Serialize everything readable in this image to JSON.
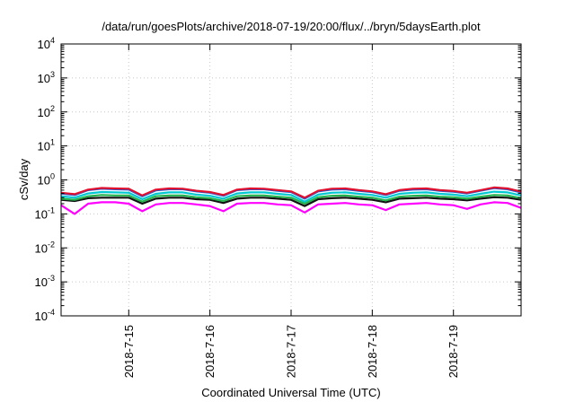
{
  "chart_data": {
    "type": "line",
    "title": "/data/run/goesPlots/archive/2018-07-19/20:00/flux/../bryn/5daysEarth.plot",
    "xlabel": "Coordinated Universal Time (UTC)",
    "ylabel": "cSv/day",
    "y_scale": "log",
    "ylim": [
      0.0001,
      10000
    ],
    "y_ticks": [
      {
        "base": "10",
        "exp": "-4",
        "value": 0.0001
      },
      {
        "base": "10",
        "exp": "-3",
        "value": 0.001
      },
      {
        "base": "10",
        "exp": "-2",
        "value": 0.01
      },
      {
        "base": "10",
        "exp": "-1",
        "value": 0.1
      },
      {
        "base": "10",
        "exp": "0",
        "value": 1
      },
      {
        "base": "10",
        "exp": "1",
        "value": 10
      },
      {
        "base": "10",
        "exp": "2",
        "value": 100
      },
      {
        "base": "10",
        "exp": "3",
        "value": 1000
      },
      {
        "base": "10",
        "exp": "4",
        "value": 10000
      }
    ],
    "xlim": [
      "2018-07-14T04:00",
      "2018-07-19T20:00"
    ],
    "x_ticks": [
      {
        "label": "2018-7-15",
        "value": "2018-07-15T00:00"
      },
      {
        "label": "2018-7-16",
        "value": "2018-07-16T00:00"
      },
      {
        "label": "2018-7-17",
        "value": "2018-07-17T00:00"
      },
      {
        "label": "2018-7-18",
        "value": "2018-07-18T00:00"
      },
      {
        "label": "2018-7-19",
        "value": "2018-07-19T00:00"
      }
    ],
    "grid": true,
    "x": [
      "2018-07-14T04:00",
      "2018-07-14T08:00",
      "2018-07-14T12:00",
      "2018-07-14T16:00",
      "2018-07-14T20:00",
      "2018-07-15T00:00",
      "2018-07-15T04:00",
      "2018-07-15T08:00",
      "2018-07-15T12:00",
      "2018-07-15T16:00",
      "2018-07-15T20:00",
      "2018-07-16T00:00",
      "2018-07-16T04:00",
      "2018-07-16T08:00",
      "2018-07-16T12:00",
      "2018-07-16T16:00",
      "2018-07-16T20:00",
      "2018-07-17T00:00",
      "2018-07-17T04:00",
      "2018-07-17T08:00",
      "2018-07-17T12:00",
      "2018-07-17T16:00",
      "2018-07-17T20:00",
      "2018-07-18T00:00",
      "2018-07-18T04:00",
      "2018-07-18T08:00",
      "2018-07-18T12:00",
      "2018-07-18T16:00",
      "2018-07-18T20:00",
      "2018-07-19T00:00",
      "2018-07-19T04:00",
      "2018-07-19T08:00",
      "2018-07-19T12:00",
      "2018-07-19T16:00",
      "2018-07-19T20:00"
    ],
    "series": [
      {
        "color": "#e0102f",
        "values": [
          0.42,
          0.38,
          0.52,
          0.58,
          0.56,
          0.55,
          0.35,
          0.52,
          0.56,
          0.55,
          0.48,
          0.44,
          0.36,
          0.52,
          0.56,
          0.55,
          0.5,
          0.46,
          0.3,
          0.48,
          0.55,
          0.56,
          0.5,
          0.46,
          0.38,
          0.5,
          0.55,
          0.56,
          0.5,
          0.47,
          0.42,
          0.5,
          0.6,
          0.56,
          0.45
        ]
      },
      {
        "color": "#1e5fd6",
        "values": [
          0.4,
          0.36,
          0.5,
          0.55,
          0.53,
          0.52,
          0.33,
          0.49,
          0.53,
          0.53,
          0.46,
          0.42,
          0.34,
          0.5,
          0.53,
          0.53,
          0.48,
          0.44,
          0.28,
          0.46,
          0.52,
          0.53,
          0.48,
          0.44,
          0.36,
          0.48,
          0.52,
          0.53,
          0.48,
          0.45,
          0.4,
          0.48,
          0.57,
          0.53,
          0.43
        ]
      },
      {
        "color": "#00c8d2",
        "values": [
          0.33,
          0.3,
          0.4,
          0.44,
          0.43,
          0.42,
          0.27,
          0.39,
          0.43,
          0.43,
          0.37,
          0.34,
          0.28,
          0.4,
          0.43,
          0.43,
          0.39,
          0.36,
          0.23,
          0.37,
          0.42,
          0.43,
          0.39,
          0.36,
          0.3,
          0.39,
          0.42,
          0.43,
          0.39,
          0.37,
          0.33,
          0.39,
          0.45,
          0.43,
          0.35
        ]
      },
      {
        "color": "#22b24c",
        "values": [
          0.28,
          0.26,
          0.33,
          0.36,
          0.35,
          0.35,
          0.23,
          0.33,
          0.35,
          0.35,
          0.31,
          0.29,
          0.24,
          0.33,
          0.35,
          0.35,
          0.32,
          0.3,
          0.2,
          0.31,
          0.34,
          0.35,
          0.32,
          0.3,
          0.25,
          0.32,
          0.34,
          0.35,
          0.32,
          0.31,
          0.28,
          0.32,
          0.36,
          0.35,
          0.29
        ]
      },
      {
        "color": "#111111",
        "values": [
          0.26,
          0.24,
          0.29,
          0.3,
          0.3,
          0.3,
          0.2,
          0.28,
          0.3,
          0.3,
          0.27,
          0.26,
          0.21,
          0.28,
          0.3,
          0.3,
          0.28,
          0.26,
          0.17,
          0.27,
          0.29,
          0.3,
          0.28,
          0.26,
          0.22,
          0.28,
          0.29,
          0.3,
          0.28,
          0.27,
          0.25,
          0.28,
          0.31,
          0.3,
          0.26
        ]
      },
      {
        "color": "#ff00ff",
        "values": [
          0.18,
          0.1,
          0.2,
          0.22,
          0.22,
          0.2,
          0.12,
          0.19,
          0.21,
          0.21,
          0.19,
          0.17,
          0.12,
          0.2,
          0.21,
          0.21,
          0.19,
          0.18,
          0.11,
          0.19,
          0.2,
          0.21,
          0.19,
          0.18,
          0.13,
          0.19,
          0.2,
          0.21,
          0.19,
          0.18,
          0.14,
          0.19,
          0.22,
          0.21,
          0.15
        ]
      }
    ]
  }
}
